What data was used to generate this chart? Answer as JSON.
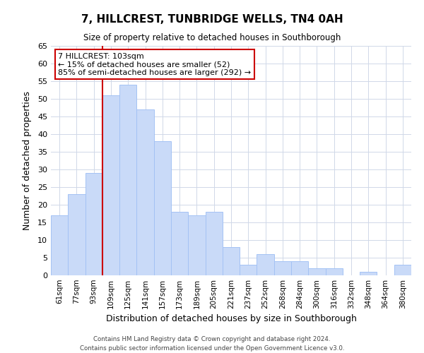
{
  "title": "7, HILLCREST, TUNBRIDGE WELLS, TN4 0AH",
  "subtitle": "Size of property relative to detached houses in Southborough",
  "xlabel": "Distribution of detached houses by size in Southborough",
  "ylabel": "Number of detached properties",
  "bar_color": "#c9daf8",
  "bar_edge_color": "#a4c2f4",
  "categories": [
    "61sqm",
    "77sqm",
    "93sqm",
    "109sqm",
    "125sqm",
    "141sqm",
    "157sqm",
    "173sqm",
    "189sqm",
    "205sqm",
    "221sqm",
    "237sqm",
    "252sqm",
    "268sqm",
    "284sqm",
    "300sqm",
    "316sqm",
    "332sqm",
    "348sqm",
    "364sqm",
    "380sqm"
  ],
  "values": [
    17,
    23,
    29,
    51,
    54,
    47,
    38,
    18,
    17,
    18,
    8,
    3,
    6,
    4,
    4,
    2,
    2,
    0,
    1,
    0,
    3
  ],
  "ylim": [
    0,
    65
  ],
  "yticks": [
    0,
    5,
    10,
    15,
    20,
    25,
    30,
    35,
    40,
    45,
    50,
    55,
    60,
    65
  ],
  "vline_color": "#cc0000",
  "vline_x_index": 3,
  "annotation_title": "7 HILLCREST: 103sqm",
  "annotation_line1": "← 15% of detached houses are smaller (52)",
  "annotation_line2": "85% of semi-detached houses are larger (292) →",
  "footer_line1": "Contains HM Land Registry data © Crown copyright and database right 2024.",
  "footer_line2": "Contains public sector information licensed under the Open Government Licence v3.0.",
  "background_color": "#ffffff",
  "grid_color": "#d0d8e8"
}
